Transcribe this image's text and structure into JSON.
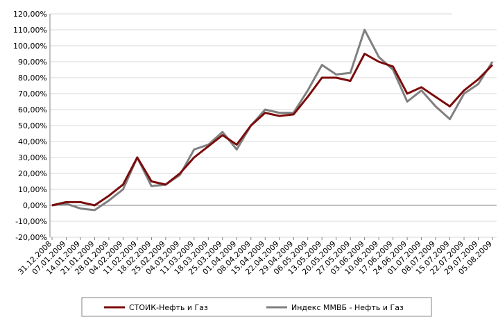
{
  "chart_data": {
    "type": "line",
    "categories": [
      "31.12.2008",
      "07.01.2009",
      "14.01.2009",
      "21.01.2009",
      "28.01.2009",
      "04.02.2009",
      "11.02.2009",
      "18.02.2009",
      "25.02.2009",
      "04.03.2009",
      "11.03.2009",
      "18.03.2009",
      "25.03.2009",
      "01.04.2009",
      "08.04.2009",
      "15.04.2009",
      "22.04.2009",
      "29.04.2009",
      "06.05.2009",
      "13.05.2009",
      "20.05.2009",
      "27.05.2009",
      "03.06.2009",
      "10.06.2009",
      "17.06.2009",
      "24.06.2009",
      "01.07.2009",
      "08.07.2009",
      "15.07.2009",
      "22.07.2009",
      "29.07.2009",
      "05.08.2009"
    ],
    "series": [
      {
        "name": "СТОИК-Нефть и Газ",
        "color": "#7b0c0c",
        "values": [
          0,
          2,
          2,
          0,
          6,
          13,
          30,
          15,
          13,
          20,
          30,
          37,
          44,
          38,
          50,
          58,
          56,
          57,
          68,
          80,
          80,
          78,
          95,
          90,
          87,
          70,
          74,
          68,
          62,
          72,
          79,
          88
        ]
      },
      {
        "name": "Индекс ММВБ - Нефть и Газ",
        "color": "#808080",
        "values": [
          0,
          1,
          -2,
          -3,
          3,
          10,
          30,
          12,
          13,
          19,
          35,
          38,
          46,
          35,
          50,
          60,
          58,
          58,
          72,
          88,
          82,
          83,
          110,
          93,
          85,
          65,
          72,
          62,
          54,
          70,
          76,
          90
        ]
      }
    ],
    "ylim": [
      -20,
      120
    ],
    "yticks": [
      {
        "value": -20,
        "label": "-20,00%"
      },
      {
        "value": -10,
        "label": "-10,00%"
      },
      {
        "value": 0,
        "label": "0,00%"
      },
      {
        "value": 10,
        "label": "10,00%"
      },
      {
        "value": 20,
        "label": "20,00%"
      },
      {
        "value": 30,
        "label": "30,00%"
      },
      {
        "value": 40,
        "label": "40,00%"
      },
      {
        "value": 50,
        "label": "50,00%"
      },
      {
        "value": 60,
        "label": "60,00%"
      },
      {
        "value": 70,
        "label": "70,00%"
      },
      {
        "value": 80,
        "label": "80,00%"
      },
      {
        "value": 90,
        "label": "90,00%"
      },
      {
        "value": 100,
        "label": "100,00%"
      },
      {
        "value": 110,
        "label": "110,00%"
      },
      {
        "value": 120,
        "label": "120,00%"
      }
    ],
    "grid": true,
    "legend": "bottom"
  }
}
